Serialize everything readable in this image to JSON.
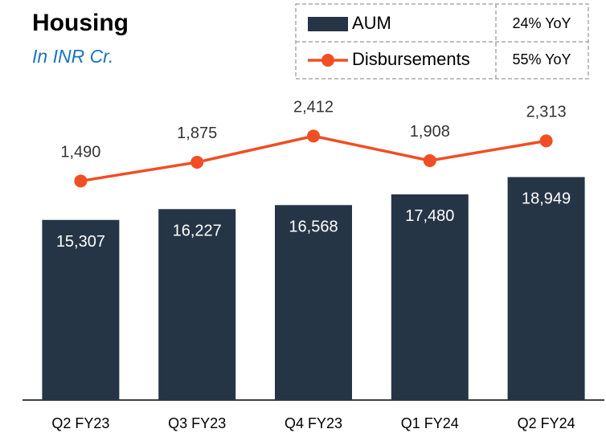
{
  "chart_data": {
    "type": "bar",
    "title": "Housing",
    "subtitle": "In INR Cr.",
    "categories": [
      "Q2 FY23",
      "Q3 FY23",
      "Q4 FY23",
      "Q1 FY24",
      "Q2 FY24"
    ],
    "series": [
      {
        "name": "AUM",
        "type": "bar",
        "color": "#263545",
        "values": [
          15307,
          16227,
          16568,
          17480,
          18949
        ],
        "value_labels": [
          "15,307",
          "16,227",
          "16,568",
          "17,480",
          "18,949"
        ],
        "yoy": "24% YoY"
      },
      {
        "name": "Disbursements",
        "type": "line",
        "axis": "y2",
        "color": "#f04e23",
        "values": [
          1490,
          1875,
          2412,
          1908,
          2313
        ],
        "value_labels": [
          "1,490",
          "1,875",
          "2,412",
          "1,908",
          "2,313"
        ],
        "yoy": "55% YoY"
      }
    ],
    "ylim": [
      0,
      22800
    ],
    "y2lim": [
      -3000,
      2500
    ]
  }
}
